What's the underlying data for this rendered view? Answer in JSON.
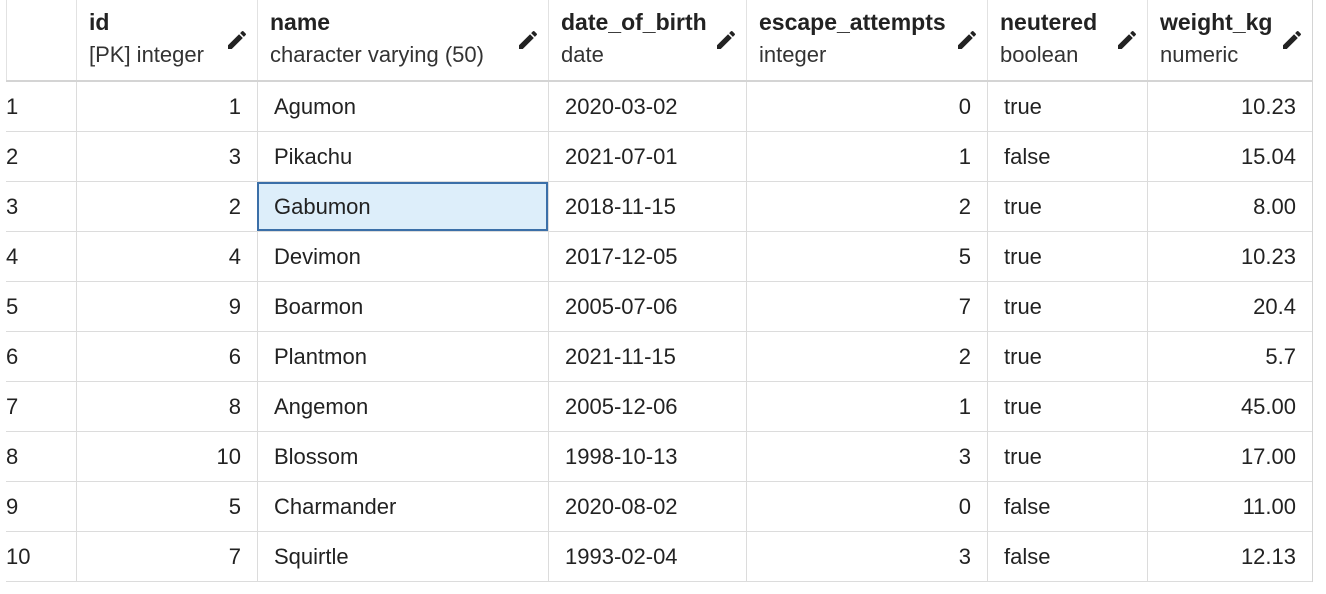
{
  "columns": [
    {
      "name": "id",
      "type": "[PK] integer",
      "icon": "pencil-icon"
    },
    {
      "name": "name",
      "type": "character varying (50)",
      "icon": "pencil-icon"
    },
    {
      "name": "date_of_birth",
      "type": "date",
      "icon": "pencil-icon"
    },
    {
      "name": "escape_attempts",
      "type": "integer",
      "icon": "pencil-icon"
    },
    {
      "name": "neutered",
      "type": "boolean",
      "icon": "pencil-icon"
    },
    {
      "name": "weight_kg",
      "type": "numeric",
      "icon": "pencil-icon"
    }
  ],
  "rows": [
    {
      "rownum": "1",
      "id": "1",
      "name": "Agumon",
      "date_of_birth": "2020-03-02",
      "escape_attempts": "0",
      "neutered": "true",
      "weight_kg": "10.23"
    },
    {
      "rownum": "2",
      "id": "3",
      "name": "Pikachu",
      "date_of_birth": "2021-07-01",
      "escape_attempts": "1",
      "neutered": "false",
      "weight_kg": "15.04"
    },
    {
      "rownum": "3",
      "id": "2",
      "name": "Gabumon",
      "date_of_birth": "2018-11-15",
      "escape_attempts": "2",
      "neutered": "true",
      "weight_kg": "8.00"
    },
    {
      "rownum": "4",
      "id": "4",
      "name": "Devimon",
      "date_of_birth": "2017-12-05",
      "escape_attempts": "5",
      "neutered": "true",
      "weight_kg": "10.23"
    },
    {
      "rownum": "5",
      "id": "9",
      "name": "Boarmon",
      "date_of_birth": "2005-07-06",
      "escape_attempts": "7",
      "neutered": "true",
      "weight_kg": "20.4"
    },
    {
      "rownum": "6",
      "id": "6",
      "name": "Plantmon",
      "date_of_birth": "2021-11-15",
      "escape_attempts": "2",
      "neutered": "true",
      "weight_kg": "5.7"
    },
    {
      "rownum": "7",
      "id": "8",
      "name": "Angemon",
      "date_of_birth": "2005-12-06",
      "escape_attempts": "1",
      "neutered": "true",
      "weight_kg": "45.00"
    },
    {
      "rownum": "8",
      "id": "10",
      "name": "Blossom",
      "date_of_birth": "1998-10-13",
      "escape_attempts": "3",
      "neutered": "true",
      "weight_kg": "17.00"
    },
    {
      "rownum": "9",
      "id": "5",
      "name": "Charmander",
      "date_of_birth": "2020-08-02",
      "escape_attempts": "0",
      "neutered": "false",
      "weight_kg": "11.00"
    },
    {
      "rownum": "10",
      "id": "7",
      "name": "Squirtle",
      "date_of_birth": "1993-02-04",
      "escape_attempts": "3",
      "neutered": "false",
      "weight_kg": "12.13"
    }
  ],
  "selection": {
    "row": 3,
    "column": "name"
  },
  "colors": {
    "selection_fill": "#ddeefa",
    "selection_border": "#3b6fa8",
    "grid_line": "#dcdcdc"
  }
}
